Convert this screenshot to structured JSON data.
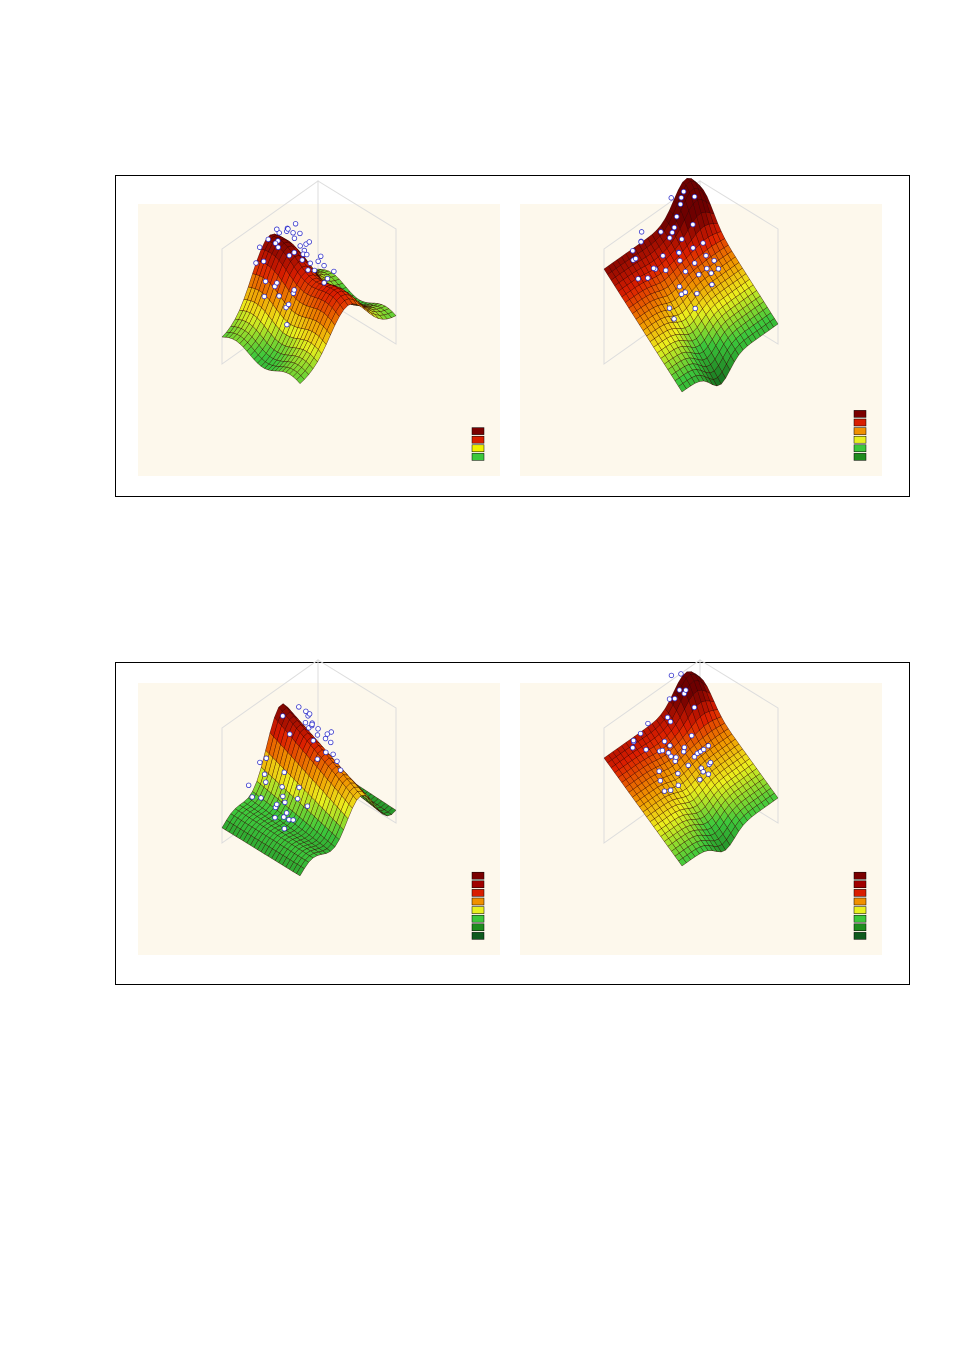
{
  "figures": [
    {
      "panels": [
        {
          "legend_colors": [
            "#7a0000",
            "#d81e00",
            "#f0f000",
            "#3cc83c"
          ]
        },
        {
          "legend_colors": [
            "#7a0000",
            "#d81e00",
            "#f09000",
            "#e8f020",
            "#3cc83c",
            "#1e8c1e"
          ]
        }
      ]
    },
    {
      "panels": [
        {
          "legend_colors": [
            "#7a0000",
            "#a00000",
            "#d81e00",
            "#f09000",
            "#e8f020",
            "#3cc83c",
            "#1e8c1e",
            "#0e5a1e"
          ]
        },
        {
          "legend_colors": [
            "#7a0000",
            "#a00000",
            "#d81e00",
            "#f09000",
            "#e8f020",
            "#3cc83c",
            "#1e8c1e",
            "#0e5a1e"
          ]
        }
      ]
    }
  ]
}
